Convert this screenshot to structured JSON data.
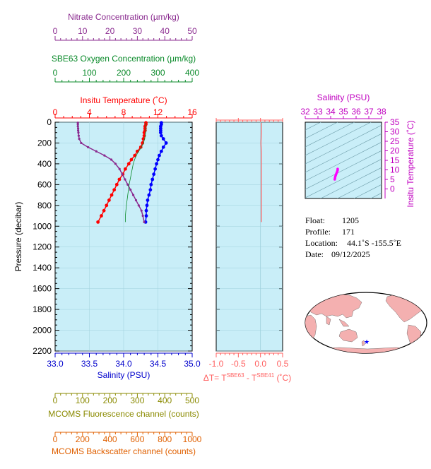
{
  "chart_data": [
    {
      "type": "line",
      "title": "",
      "axes": {
        "nitrate": {
          "label": "Nitrate Concentration (µm/kg)",
          "range": [
            0,
            50
          ],
          "ticks": [
            "0",
            "10",
            "20",
            "30",
            "40",
            "50"
          ],
          "color": "#8a2a8f"
        },
        "oxygen": {
          "label": "SBE63 Oxygen Concentration (µm/kg)",
          "range": [
            0,
            400
          ],
          "ticks": [
            "0",
            "100",
            "200",
            "300",
            "400"
          ],
          "color": "#0a8a2a"
        },
        "temperature": {
          "label": "Insitu Temperature (˚C)",
          "range": [
            0,
            16
          ],
          "ticks": [
            "0",
            "4",
            "8",
            "12",
            "16"
          ],
          "color": "#ff0000"
        },
        "salinity": {
          "label": "Salinity (PSU)",
          "range": [
            33.0,
            35.0
          ],
          "ticks": [
            "33.0",
            "33.5",
            "34.0",
            "34.5",
            "35.0"
          ],
          "color": "#0000cc"
        },
        "pressure": {
          "label": "Pressure (decibar)",
          "range": [
            0,
            2200
          ],
          "ticks": [
            "0",
            "200",
            "400",
            "600",
            "800",
            "1000",
            "1200",
            "1400",
            "1600",
            "1800",
            "2000",
            "2200"
          ],
          "color": "#000000"
        },
        "fluorescence": {
          "label": "MCOMS Fluorescence channel (counts)",
          "range": [
            0,
            500
          ],
          "ticks": [
            "0",
            "100",
            "200",
            "300",
            "400",
            "500"
          ],
          "color": "#8a8a00"
        },
        "backscatter": {
          "label": "MCOMS Backscatter channel (counts)",
          "range": [
            0,
            1000
          ],
          "ticks": [
            "0",
            "200",
            "400",
            "600",
            "800",
            "1000"
          ],
          "color": "#e06000"
        }
      },
      "grid": true,
      "series": [
        {
          "key": "temperature",
          "color": "#ff0000",
          "pressure": [
            5,
            20,
            40,
            60,
            80,
            100,
            130,
            160,
            200,
            240,
            280,
            320,
            360,
            400,
            450,
            500,
            550,
            600,
            650,
            700,
            750,
            800,
            850,
            900,
            960
          ],
          "values": [
            10.6,
            10.6,
            10.5,
            10.5,
            10.5,
            10.4,
            10.4,
            10.3,
            10.2,
            10.0,
            9.6,
            9.3,
            8.9,
            8.6,
            8.2,
            7.9,
            7.5,
            7.2,
            6.9,
            6.6,
            6.3,
            6.0,
            5.7,
            5.4,
            5.0
          ]
        },
        {
          "key": "salinity",
          "color": "#0000ff",
          "pressure": [
            5,
            20,
            40,
            60,
            80,
            100,
            130,
            160,
            200,
            240,
            280,
            320,
            360,
            400,
            450,
            500,
            550,
            600,
            650,
            700,
            750,
            800,
            850,
            900,
            960
          ],
          "values": [
            34.55,
            34.55,
            34.54,
            34.54,
            34.54,
            34.54,
            34.55,
            34.58,
            34.62,
            34.58,
            34.55,
            34.52,
            34.5,
            34.48,
            34.46,
            34.44,
            34.42,
            34.4,
            34.39,
            34.37,
            34.35,
            34.34,
            34.33,
            34.33,
            34.32
          ]
        },
        {
          "key": "nitrate",
          "color": "#8a2a8f",
          "pressure": [
            5,
            20,
            40,
            60,
            80,
            100,
            130,
            160,
            200,
            240,
            280,
            320,
            360,
            400,
            450,
            500,
            550,
            600,
            650,
            700,
            750,
            800,
            850,
            900,
            960
          ],
          "values": [
            8.3,
            8.3,
            8.3,
            8.4,
            8.4,
            8.5,
            8.6,
            8.8,
            9.5,
            12.0,
            15.0,
            18.0,
            20.5,
            22.0,
            23.5,
            24.5,
            25.5,
            26.5,
            27.5,
            28.5,
            29.5,
            30.5,
            31.5,
            32.0,
            32.5
          ]
        },
        {
          "key": "oxygen",
          "color": "#0a8a2a",
          "pressure": [
            5,
            50,
            100,
            150,
            200,
            250,
            300,
            350,
            400,
            500,
            600,
            700,
            800,
            900,
            960
          ],
          "values": [
            265,
            265,
            264,
            262,
            258,
            250,
            240,
            233,
            228,
            222,
            216,
            212,
            208,
            205,
            205
          ]
        }
      ]
    },
    {
      "type": "line",
      "title": "",
      "xlabel": "ΔT= T^SBE63 - T^SBE41 (˚C)",
      "xlabel_parts": {
        "prefix": "ΔT= T",
        "sup1": "SBE63",
        "mid": " - T",
        "sup2": "SBE41",
        "suffix": " (˚C)"
      },
      "xlim": [
        -1.0,
        0.5
      ],
      "x_ticks": [
        "-1.0",
        "-0.5",
        "0.0",
        "0.5"
      ],
      "ylim": [
        0,
        2200
      ],
      "series": [
        {
          "name": "",
          "color": "#ff6060",
          "pressure": [
            5,
            100,
            200,
            300,
            400,
            500,
            600,
            700,
            800,
            900,
            960
          ],
          "values": [
            0.02,
            0.02,
            0.01,
            0.02,
            0.02,
            0.02,
            0.02,
            0.02,
            0.02,
            0.02,
            0.02
          ]
        }
      ]
    },
    {
      "type": "scatter",
      "title": "",
      "xlabel": "Salinity (PSU)",
      "ylabel": "Insitu Temperature (˚C)",
      "xlim": [
        32,
        38
      ],
      "ylim": [
        -5,
        35
      ],
      "x_ticks": [
        "32",
        "33",
        "34",
        "35",
        "36",
        "37",
        "38"
      ],
      "y_ticks": [
        "0",
        "5",
        "10",
        "15",
        "20",
        "25",
        "30",
        "35"
      ],
      "points": {
        "salinity": [
          34.32,
          34.34,
          34.37,
          34.4,
          34.44,
          34.48,
          34.52,
          34.55,
          34.55
        ],
        "temperature": [
          5.0,
          5.7,
          6.6,
          7.2,
          7.9,
          8.6,
          9.3,
          9.9,
          10.5
        ]
      },
      "color": "#ff00ff"
    }
  ],
  "float_info": {
    "float_label": "Float:",
    "float_value": "1205",
    "profile_label": "Profile:",
    "profile_value": "171",
    "location_label": "Location:",
    "location_value": "44.1˚S  -155.5˚E",
    "date_label": "Date:",
    "date_value": "09/12/2025"
  },
  "map": {
    "marker_color": "#0000ff",
    "land_color": "#f4b0b0",
    "ocean_color": "#ffffff"
  },
  "colors": {
    "plot_background": "#c9eef8"
  }
}
